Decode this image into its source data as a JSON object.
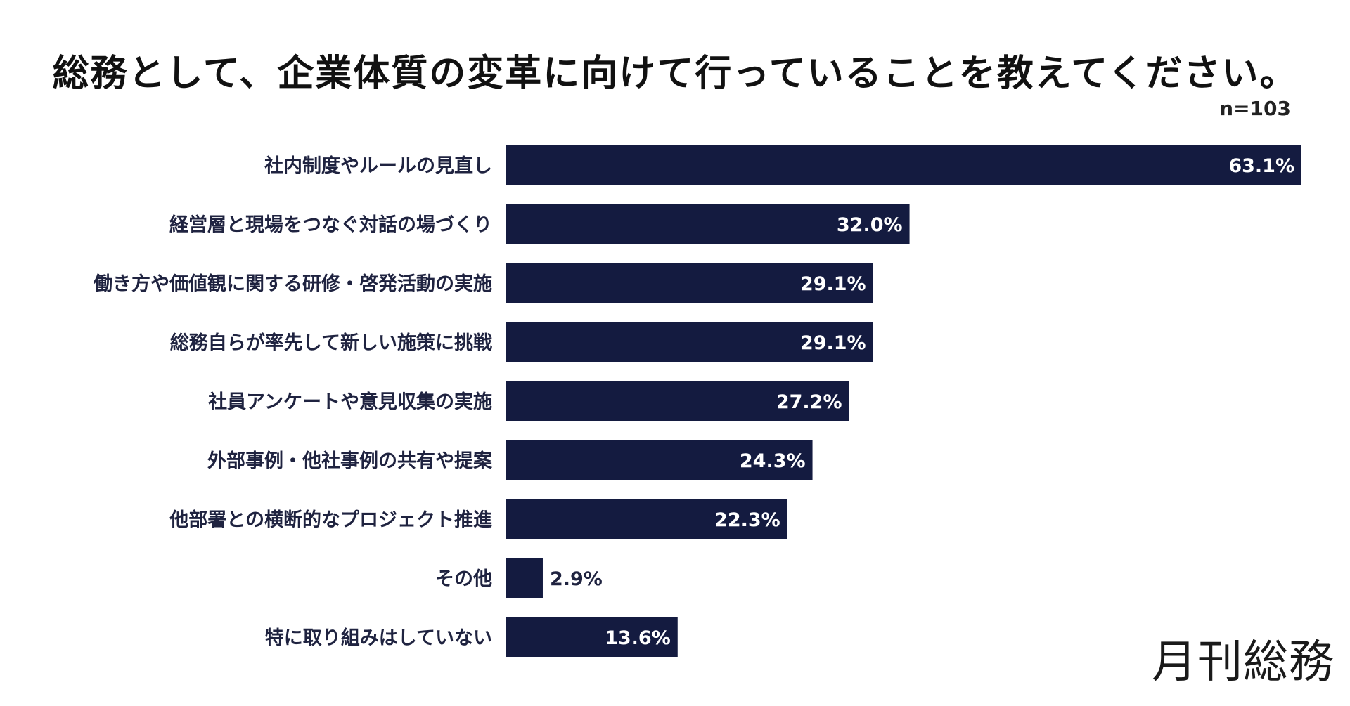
{
  "chart_data": {
    "type": "bar",
    "orientation": "horizontal",
    "title": "総務として、企業体質の変革に向けて行っていることを教えてください。",
    "sample_size": "n=103",
    "categories": [
      "社内制度やルールの見直し",
      "経営層と現場をつなぐ対話の場づくり",
      "働き方や価値観に関する研修・啓発活動の実施",
      "総務自らが率先して新しい施策に挑戦",
      "社員アンケートや意見収集の実施",
      "外部事例・他社事例の共有や提案",
      "他部署との横断的なプロジェクト推進",
      "その他",
      "特に取り組みはしていない"
    ],
    "values": [
      63.1,
      32.0,
      29.1,
      29.1,
      27.2,
      24.3,
      22.3,
      2.9,
      13.6
    ],
    "value_labels": [
      "63.1%",
      "32.0%",
      "29.1%",
      "29.1%",
      "27.2%",
      "24.3%",
      "22.3%",
      "2.9%",
      "13.6%"
    ],
    "unit": "%",
    "xlim": [
      0,
      63.1
    ],
    "grid": false,
    "legend": "none",
    "bar_color": "#141b40"
  },
  "logo_text": "月刊総務"
}
